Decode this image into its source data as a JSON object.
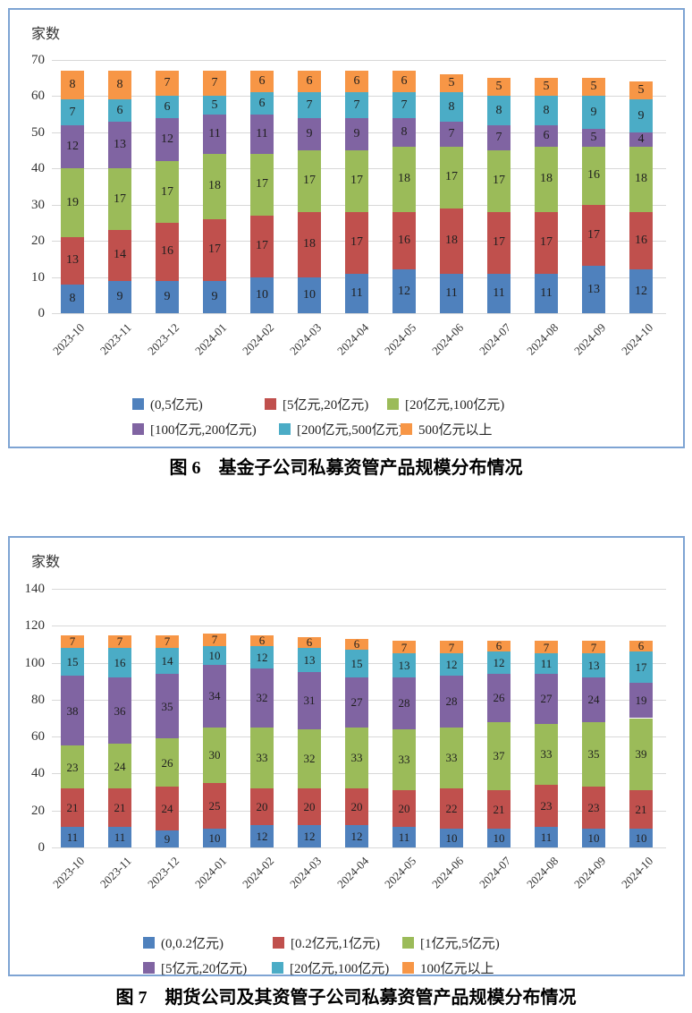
{
  "unit_label": "家数",
  "colors": {
    "series_blue": "#4F81BD",
    "series_red": "#C0504D",
    "series_green": "#9BBB59",
    "series_purple": "#8064A2",
    "series_cyan": "#4BACC6",
    "series_orange": "#F79646",
    "box_border": "#7ea4d3",
    "gridline": "#d8d8d8"
  },
  "chart_data": [
    {
      "type": "bar",
      "stacked": true,
      "title": "图 6　基金子公司私募资管产品规模分布情况",
      "unit_label": "家数",
      "categories": [
        "2023-10",
        "2023-11",
        "2023-12",
        "2024-01",
        "2024-02",
        "2024-03",
        "2024-04",
        "2024-05",
        "2024-06",
        "2024-07",
        "2024-08",
        "2024-09",
        "2024-10"
      ],
      "ylim": [
        0,
        70
      ],
      "ytick_step": 10,
      "grid": true,
      "legend_position": "bottom",
      "series": [
        {
          "name": "(0,5亿元)",
          "color": "#4F81BD",
          "values": [
            8,
            9,
            9,
            9,
            10,
            10,
            11,
            12,
            11,
            11,
            11,
            13,
            12
          ]
        },
        {
          "name": "[5亿元,20亿元)",
          "color": "#C0504D",
          "values": [
            13,
            14,
            16,
            17,
            17,
            18,
            17,
            16,
            18,
            17,
            17,
            17,
            16
          ]
        },
        {
          "name": "[20亿元,100亿元)",
          "color": "#9BBB59",
          "values": [
            19,
            17,
            17,
            18,
            17,
            17,
            17,
            18,
            17,
            17,
            18,
            16,
            18
          ]
        },
        {
          "name": "[100亿元,200亿元)",
          "color": "#8064A2",
          "values": [
            12,
            13,
            12,
            11,
            11,
            9,
            9,
            8,
            7,
            7,
            6,
            5,
            4
          ]
        },
        {
          "name": "[200亿元,500亿元)",
          "color": "#4BACC6",
          "values": [
            7,
            6,
            6,
            5,
            6,
            7,
            7,
            7,
            8,
            8,
            8,
            9,
            9
          ]
        },
        {
          "name": "500亿元以上",
          "color": "#F79646",
          "values": [
            8,
            8,
            7,
            7,
            6,
            6,
            6,
            6,
            5,
            5,
            5,
            5,
            5
          ]
        }
      ]
    },
    {
      "type": "bar",
      "stacked": true,
      "title": "图 7　期货公司及其资管子公司私募资管产品规模分布情况",
      "unit_label": "家数",
      "categories": [
        "2023-10",
        "2023-11",
        "2023-12",
        "2024-01",
        "2024-02",
        "2024-03",
        "2024-04",
        "2024-05",
        "2024-06",
        "2024-07",
        "2024-08",
        "2024-09",
        "2024-10"
      ],
      "ylim": [
        0,
        140
      ],
      "ytick_step": 20,
      "grid": true,
      "legend_position": "bottom",
      "series": [
        {
          "name": "(0,0.2亿元)",
          "color": "#4F81BD",
          "values": [
            11,
            11,
            9,
            10,
            12,
            12,
            12,
            11,
            10,
            10,
            11,
            10,
            10
          ]
        },
        {
          "name": "[0.2亿元,1亿元)",
          "color": "#C0504D",
          "values": [
            21,
            21,
            24,
            25,
            20,
            20,
            20,
            20,
            22,
            21,
            23,
            23,
            21
          ]
        },
        {
          "name": "[1亿元,5亿元)",
          "color": "#9BBB59",
          "values": [
            23,
            24,
            26,
            30,
            33,
            32,
            33,
            33,
            33,
            37,
            33,
            35,
            39
          ]
        },
        {
          "name": "[5亿元,20亿元)",
          "color": "#8064A2",
          "values": [
            38,
            36,
            35,
            34,
            32,
            31,
            27,
            28,
            28,
            26,
            27,
            24,
            19
          ]
        },
        {
          "name": "[20亿元,100亿元)",
          "color": "#4BACC6",
          "values": [
            15,
            16,
            14,
            10,
            12,
            13,
            15,
            13,
            12,
            12,
            11,
            13,
            17
          ]
        },
        {
          "name": "100亿元以上",
          "color": "#F79646",
          "values": [
            7,
            7,
            7,
            7,
            6,
            6,
            6,
            7,
            7,
            6,
            7,
            7,
            6
          ]
        }
      ]
    }
  ]
}
